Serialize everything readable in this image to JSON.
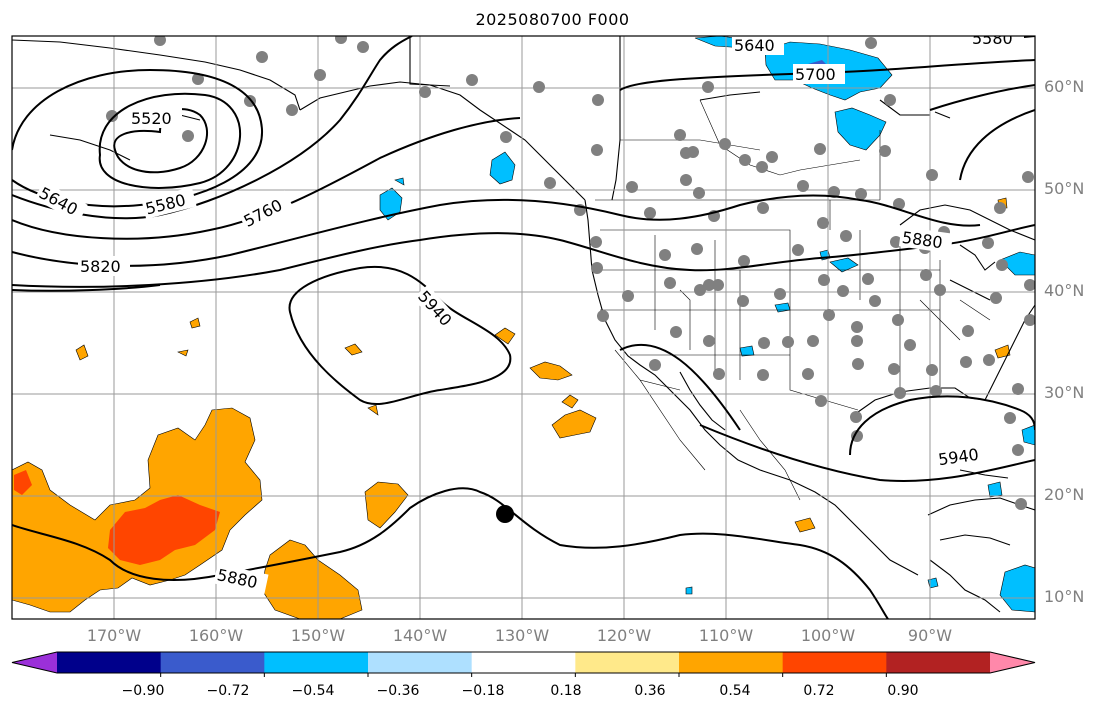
{
  "title": "2025080700 F000",
  "lat_labels": [
    "60°N",
    "50°N",
    "40°N",
    "30°N",
    "20°N",
    "10°N"
  ],
  "lon_labels": [
    "170°W",
    "160°W",
    "150°W",
    "140°W",
    "130°W",
    "120°W",
    "110°W",
    "100°W",
    "90°W"
  ],
  "contour_labels": [
    "5520",
    "5580",
    "5640",
    "5640",
    "5700",
    "5580",
    "5760",
    "5820",
    "5880",
    "5880",
    "5940",
    "5940"
  ],
  "colorbar": {
    "ticks": [
      "−0.90",
      "−0.72",
      "−0.54",
      "−0.36",
      "−0.18",
      "0.18",
      "0.36",
      "0.54",
      "0.72",
      "0.90"
    ],
    "colors": [
      "#9b30d9",
      "#00008b",
      "#3a5bcc",
      "#00bfff",
      "#aee0ff",
      "#ffffff",
      "#ffe98a",
      "#ffa500",
      "#ff4500",
      "#b22222",
      "#ff88aa"
    ]
  },
  "marker_symbol": "●"
}
